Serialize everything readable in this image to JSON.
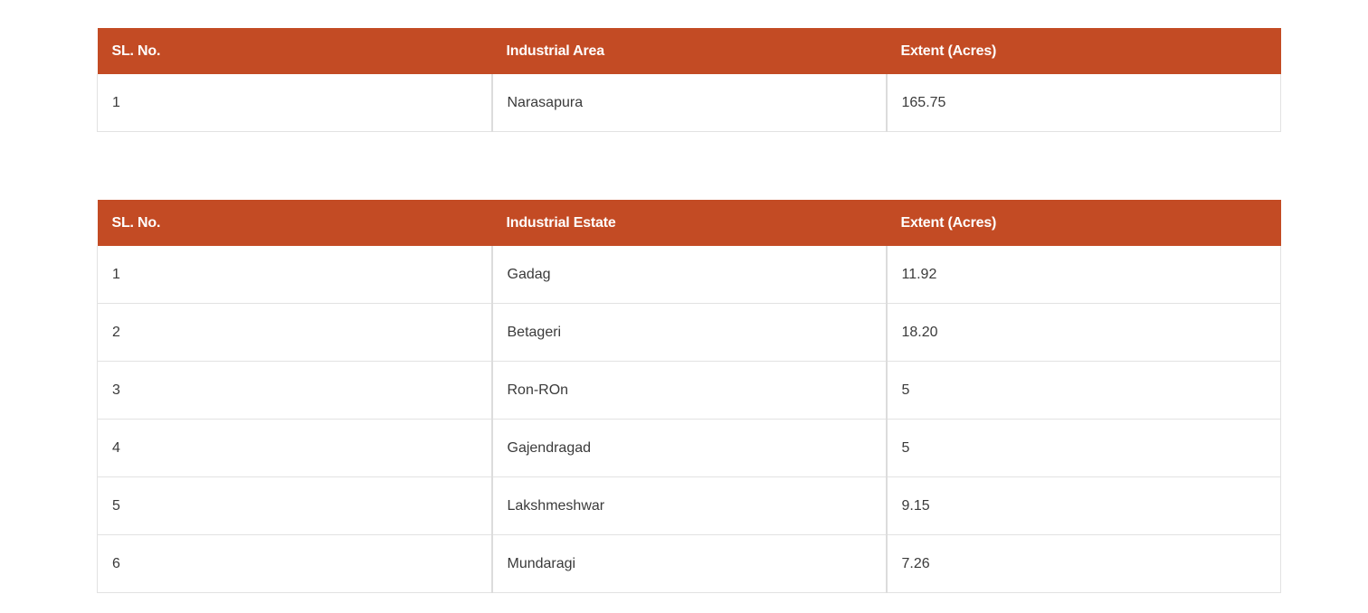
{
  "colors": {
    "header_bg": "#c34b24",
    "header_text": "#ffffff",
    "border": "#e2e2e2",
    "body_text": "#3a3a3a"
  },
  "areas_table": {
    "headers": [
      "SL. No.",
      "Industrial Area",
      "Extent (Acres)"
    ],
    "rows": [
      [
        "1",
        "Narasapura",
        "165.75"
      ]
    ]
  },
  "estates_table": {
    "headers": [
      "SL. No.",
      "Industrial Estate",
      "Extent (Acres)"
    ],
    "rows": [
      [
        "1",
        "Gadag",
        "11.92"
      ],
      [
        "2",
        "Betageri",
        "18.20"
      ],
      [
        "3",
        "Ron-ROn",
        "5"
      ],
      [
        "4",
        "Gajendragad",
        "5"
      ],
      [
        "5",
        "Lakshmeshwar",
        "9.15"
      ],
      [
        "6",
        "Mundaragi",
        "7.26"
      ]
    ]
  }
}
